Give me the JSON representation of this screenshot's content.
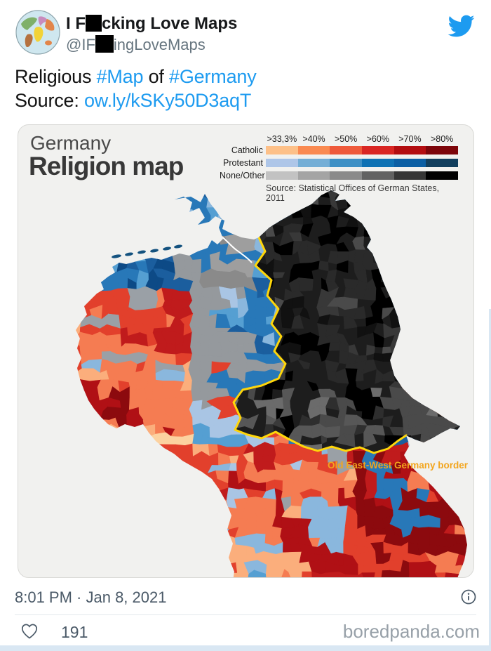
{
  "header": {
    "author_name_prefix": "I F",
    "author_name_suffix": "cking Love Maps",
    "handle_prefix": "@IF",
    "handle_suffix": "ingLoveMaps",
    "brand_icon": "twitter-bird",
    "brand_color": "#1d9bf0",
    "avatar_description": "hand-drawn-world-map-globe"
  },
  "tweet_text": {
    "word_religious": "Religious ",
    "hashtag_map": "#Map",
    "word_of": " of ",
    "hashtag_germany": "#Germany",
    "source_label": "Source: ",
    "source_link": "ow.ly/kSKy50D3aqT",
    "link_color": "#1d9bf0"
  },
  "map_card": {
    "title_line1": "Germany",
    "title_line2": "Religion map",
    "legend": {
      "thresholds": [
        ">33,3%",
        ">40%",
        ">50%",
        ">60%",
        ">70%",
        ">80%"
      ],
      "rows": [
        {
          "label": "Catholic",
          "colors": [
            "#fdc088",
            "#fa8a51",
            "#ef5a3b",
            "#d92623",
            "#b30d10",
            "#7d050a"
          ]
        },
        {
          "label": "Protestant",
          "colors": [
            "#aec6e8",
            "#74aed6",
            "#3e90c5",
            "#0f72b4",
            "#0b5fa4",
            "#123f5e"
          ]
        },
        {
          "label": "None/Other",
          "colors": [
            "#c2c2c2",
            "#a4a4a4",
            "#8a8a8a",
            "#626262",
            "#363636",
            "#000000"
          ]
        }
      ],
      "source": "Source: Statistical Offices of German States, 2011"
    },
    "border_label": "Old East-West Germany border",
    "border_line_color": "#ffd60a",
    "border_label_color": "#f2a51d",
    "background": "#f1f1ef"
  },
  "footer": {
    "timestamp": "8:01 PM · Jan 8, 2021",
    "like_count": "191",
    "attribution": "boredpanda.com"
  }
}
